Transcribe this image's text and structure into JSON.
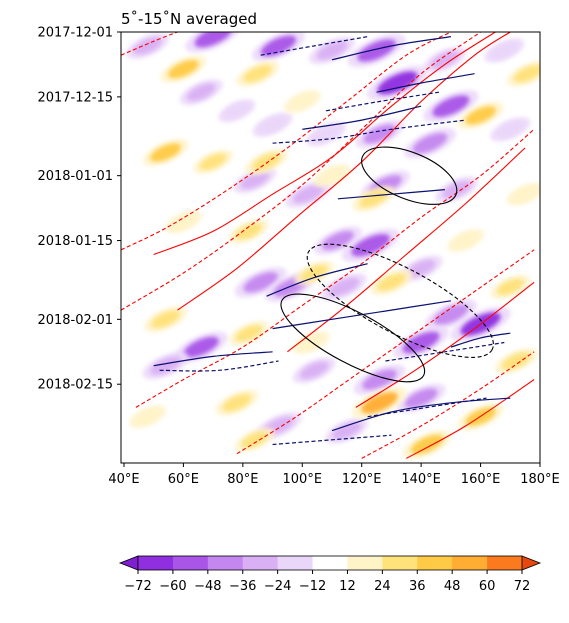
{
  "chart_data": {
    "type": "heatmap",
    "title": "5˚-15˚N averaged",
    "xlabel": "",
    "ylabel": "",
    "xlim": [
      39,
      180
    ],
    "ylim_dates": [
      "2017-12-01",
      "2018-03-04"
    ],
    "x_ticks": [
      {
        "value": 40,
        "label": "40°E"
      },
      {
        "value": 60,
        "label": "60°E"
      },
      {
        "value": 80,
        "label": "80°E"
      },
      {
        "value": 100,
        "label": "100°E"
      },
      {
        "value": 120,
        "label": "120°E"
      },
      {
        "value": 140,
        "label": "140°E"
      },
      {
        "value": 160,
        "label": "160°E"
      },
      {
        "value": 180,
        "label": "180°E"
      }
    ],
    "y_ticks": [
      {
        "date": "2017-12-01",
        "label": "2017-12-01"
      },
      {
        "date": "2017-12-15",
        "label": "2017-12-15"
      },
      {
        "date": "2018-01-01",
        "label": "2018-01-01"
      },
      {
        "date": "2018-01-15",
        "label": "2018-01-15"
      },
      {
        "date": "2018-02-01",
        "label": "2018-02-01"
      },
      {
        "date": "2018-02-15",
        "label": "2018-02-15"
      }
    ],
    "colorbar": {
      "levels": [
        -72,
        -60,
        -48,
        -36,
        -24,
        -12,
        12,
        24,
        36,
        48,
        60,
        72
      ],
      "tick_labels": [
        "−72",
        "−60",
        "−48",
        "−36",
        "−24",
        "−12",
        "12",
        "24",
        "36",
        "48",
        "60",
        "72"
      ],
      "under_color": "#7e1fd1",
      "over_color": "#e8480e",
      "bin_colors": [
        "#8f2fe0",
        "#a855e8",
        "#c487ef",
        "#d9b0f4",
        "#ead6f9",
        "#ffffff",
        "#fff3c8",
        "#ffe27a",
        "#ffca45",
        "#ffad33",
        "#fb7a1d"
      ]
    },
    "shading_patches": [
      {
        "lon": 48,
        "date": "2017-12-04",
        "value": -30
      },
      {
        "lon": 70,
        "date": "2017-12-02",
        "value": -55
      },
      {
        "lon": 92,
        "date": "2017-12-04",
        "value": -50
      },
      {
        "lon": 110,
        "date": "2017-12-05",
        "value": -36
      },
      {
        "lon": 125,
        "date": "2017-12-05",
        "value": -60
      },
      {
        "lon": 148,
        "date": "2017-12-07",
        "value": -30
      },
      {
        "lon": 168,
        "date": "2017-12-05",
        "value": -24
      },
      {
        "lon": 132,
        "date": "2017-12-12",
        "value": -65
      },
      {
        "lon": 150,
        "date": "2017-12-17",
        "value": -55
      },
      {
        "lon": 66,
        "date": "2017-12-14",
        "value": -30
      },
      {
        "lon": 78,
        "date": "2017-12-18",
        "value": -18
      },
      {
        "lon": 90,
        "date": "2017-12-21",
        "value": -24
      },
      {
        "lon": 108,
        "date": "2017-12-23",
        "value": -24
      },
      {
        "lon": 126,
        "date": "2017-12-23",
        "value": -40
      },
      {
        "lon": 143,
        "date": "2017-12-25",
        "value": -48
      },
      {
        "lon": 170,
        "date": "2017-12-22",
        "value": -24
      },
      {
        "lon": 84,
        "date": "2018-01-02",
        "value": -30
      },
      {
        "lon": 102,
        "date": "2018-01-05",
        "value": -36
      },
      {
        "lon": 128,
        "date": "2018-01-03",
        "value": -42
      },
      {
        "lon": 152,
        "date": "2018-01-04",
        "value": -30
      },
      {
        "lon": 112,
        "date": "2018-01-15",
        "value": -40
      },
      {
        "lon": 123,
        "date": "2018-01-16",
        "value": -60
      },
      {
        "lon": 140,
        "date": "2018-01-21",
        "value": -30
      },
      {
        "lon": 86,
        "date": "2018-01-24",
        "value": -48
      },
      {
        "lon": 96,
        "date": "2018-01-25",
        "value": -45
      },
      {
        "lon": 114,
        "date": "2018-01-25",
        "value": -36
      },
      {
        "lon": 150,
        "date": "2018-01-31",
        "value": -48
      },
      {
        "lon": 160,
        "date": "2018-02-02",
        "value": -65
      },
      {
        "lon": 140,
        "date": "2018-02-06",
        "value": -55
      },
      {
        "lon": 66,
        "date": "2018-02-07",
        "value": -50
      },
      {
        "lon": 54,
        "date": "2018-02-11",
        "value": -36
      },
      {
        "lon": 104,
        "date": "2018-02-12",
        "value": -30
      },
      {
        "lon": 126,
        "date": "2018-02-14",
        "value": -48
      },
      {
        "lon": 140,
        "date": "2018-02-18",
        "value": -42
      },
      {
        "lon": 92,
        "date": "2018-02-24",
        "value": -36
      },
      {
        "lon": 115,
        "date": "2018-02-25",
        "value": -30
      },
      {
        "lon": 60,
        "date": "2017-12-09",
        "value": 36
      },
      {
        "lon": 85,
        "date": "2017-12-10",
        "value": 30
      },
      {
        "lon": 176,
        "date": "2017-12-10",
        "value": 30
      },
      {
        "lon": 100,
        "date": "2017-12-16",
        "value": 18
      },
      {
        "lon": 160,
        "date": "2017-12-19",
        "value": 36
      },
      {
        "lon": 54,
        "date": "2017-12-27",
        "value": 36
      },
      {
        "lon": 70,
        "date": "2017-12-29",
        "value": 24
      },
      {
        "lon": 88,
        "date": "2017-12-29",
        "value": 30
      },
      {
        "lon": 110,
        "date": "2018-01-01",
        "value": 18
      },
      {
        "lon": 124,
        "date": "2018-01-06",
        "value": 30
      },
      {
        "lon": 175,
        "date": "2018-01-05",
        "value": 18
      },
      {
        "lon": 60,
        "date": "2018-01-11",
        "value": 18
      },
      {
        "lon": 82,
        "date": "2018-01-13",
        "value": 24
      },
      {
        "lon": 155,
        "date": "2018-01-15",
        "value": 18
      },
      {
        "lon": 104,
        "date": "2018-01-22",
        "value": 24
      },
      {
        "lon": 130,
        "date": "2018-01-24",
        "value": 30
      },
      {
        "lon": 170,
        "date": "2018-01-25",
        "value": 24
      },
      {
        "lon": 54,
        "date": "2018-02-01",
        "value": 30
      },
      {
        "lon": 82,
        "date": "2018-02-04",
        "value": 24
      },
      {
        "lon": 103,
        "date": "2018-02-06",
        "value": 18
      },
      {
        "lon": 172,
        "date": "2018-02-10",
        "value": 30
      },
      {
        "lon": 48,
        "date": "2018-02-22",
        "value": 18
      },
      {
        "lon": 78,
        "date": "2018-02-19",
        "value": 30
      },
      {
        "lon": 126,
        "date": "2018-02-19",
        "value": 54
      },
      {
        "lon": 160,
        "date": "2018-02-22",
        "value": 36
      },
      {
        "lon": 84,
        "date": "2018-02-27",
        "value": 24
      },
      {
        "lon": 142,
        "date": "2018-02-28",
        "value": 42
      }
    ],
    "contour_series": [
      {
        "style": "red-solid",
        "color": "#ff0000",
        "dash": false,
        "points": [
          [
            50,
            "2018-01-18"
          ],
          [
            70,
            "2018-01-13"
          ],
          [
            90,
            "2018-01-05"
          ],
          [
            110,
            "2017-12-28"
          ],
          [
            130,
            "2017-12-17"
          ],
          [
            148,
            "2017-12-08"
          ],
          [
            165,
            "2017-12-01"
          ]
        ]
      },
      {
        "style": "red-solid",
        "color": "#ff0000",
        "dash": false,
        "points": [
          [
            58,
            "2018-01-30"
          ],
          [
            78,
            "2018-01-21"
          ],
          [
            98,
            "2018-01-10"
          ],
          [
            120,
            "2017-12-29"
          ],
          [
            140,
            "2017-12-16"
          ],
          [
            158,
            "2017-12-06"
          ],
          [
            170,
            "2017-12-01"
          ]
        ]
      },
      {
        "style": "red-solid",
        "color": "#ff0000",
        "dash": false,
        "points": [
          [
            95,
            "2018-02-08"
          ],
          [
            115,
            "2018-01-29"
          ],
          [
            135,
            "2018-01-18"
          ],
          [
            155,
            "2018-01-07"
          ],
          [
            175,
            "2017-12-26"
          ]
        ]
      },
      {
        "style": "red-solid",
        "color": "#ff0000",
        "dash": false,
        "points": [
          [
            118,
            "2018-02-20"
          ],
          [
            138,
            "2018-02-12"
          ],
          [
            158,
            "2018-02-03"
          ],
          [
            178,
            "2018-01-24"
          ]
        ]
      },
      {
        "style": "red-solid",
        "color": "#ff0000",
        "dash": false,
        "points": [
          [
            135,
            "2018-03-03"
          ],
          [
            155,
            "2018-02-24"
          ],
          [
            178,
            "2018-02-14"
          ]
        ]
      },
      {
        "style": "red-dashed",
        "color": "#ff0000",
        "dash": true,
        "points": [
          [
            39,
            "2017-12-06"
          ],
          [
            50,
            "2017-12-03"
          ],
          [
            58,
            "2017-12-01"
          ]
        ]
      },
      {
        "style": "red-dashed",
        "color": "#ff0000",
        "dash": true,
        "points": [
          [
            39,
            "2018-01-17"
          ],
          [
            55,
            "2018-01-12"
          ],
          [
            75,
            "2018-01-04"
          ],
          [
            95,
            "2017-12-26"
          ],
          [
            115,
            "2017-12-16"
          ],
          [
            135,
            "2017-12-06"
          ],
          [
            150,
            "2017-12-01"
          ]
        ]
      },
      {
        "style": "red-dashed",
        "color": "#ff0000",
        "dash": true,
        "points": [
          [
            39,
            "2018-01-30"
          ],
          [
            60,
            "2018-01-22"
          ],
          [
            80,
            "2018-01-13"
          ],
          [
            100,
            "2018-01-03"
          ],
          [
            120,
            "2017-12-22"
          ],
          [
            140,
            "2017-12-10"
          ],
          [
            160,
            "2017-12-01"
          ]
        ]
      },
      {
        "style": "red-dashed",
        "color": "#ff0000",
        "dash": true,
        "points": [
          [
            44,
            "2018-02-20"
          ],
          [
            60,
            "2018-02-14"
          ],
          [
            80,
            "2018-02-07"
          ],
          [
            100,
            "2018-01-29"
          ],
          [
            120,
            "2018-01-20"
          ],
          [
            140,
            "2018-01-10"
          ],
          [
            160,
            "2018-01-01"
          ],
          [
            178,
            "2017-12-22"
          ]
        ]
      },
      {
        "style": "red-dashed",
        "color": "#ff0000",
        "dash": true,
        "points": [
          [
            78,
            "2018-03-02"
          ],
          [
            98,
            "2018-02-22"
          ],
          [
            118,
            "2018-02-13"
          ],
          [
            138,
            "2018-02-04"
          ],
          [
            158,
            "2018-01-26"
          ],
          [
            178,
            "2018-01-17"
          ]
        ]
      },
      {
        "style": "red-dashed",
        "color": "#ff0000",
        "dash": true,
        "points": [
          [
            120,
            "2018-03-03"
          ],
          [
            140,
            "2018-02-24"
          ],
          [
            160,
            "2018-02-16"
          ],
          [
            178,
            "2018-02-08"
          ]
        ]
      },
      {
        "style": "navy-solid",
        "color": "#0b1170",
        "dash": false,
        "points": [
          [
            110,
            "2017-12-07"
          ],
          [
            130,
            "2017-12-04"
          ],
          [
            150,
            "2017-12-02"
          ]
        ]
      },
      {
        "style": "navy-solid",
        "color": "#0b1170",
        "dash": false,
        "points": [
          [
            125,
            "2017-12-14"
          ],
          [
            140,
            "2017-12-12"
          ],
          [
            158,
            "2017-12-10"
          ]
        ]
      },
      {
        "style": "navy-solid",
        "color": "#0b1170",
        "dash": false,
        "points": [
          [
            100,
            "2017-12-22"
          ],
          [
            120,
            "2017-12-20"
          ],
          [
            140,
            "2017-12-17"
          ]
        ]
      },
      {
        "style": "navy-solid",
        "color": "#0b1170",
        "dash": false,
        "points": [
          [
            112,
            "2018-01-06"
          ],
          [
            130,
            "2018-01-05"
          ],
          [
            148,
            "2018-01-04"
          ]
        ]
      },
      {
        "style": "navy-solid",
        "color": "#0b1170",
        "dash": false,
        "points": [
          [
            88,
            "2018-01-27"
          ],
          [
            104,
            "2018-01-23"
          ],
          [
            122,
            "2018-01-20"
          ]
        ]
      },
      {
        "style": "navy-solid",
        "color": "#0b1170",
        "dash": false,
        "points": [
          [
            90,
            "2018-02-03"
          ],
          [
            110,
            "2018-02-01"
          ],
          [
            130,
            "2018-01-30"
          ],
          [
            150,
            "2018-01-28"
          ]
        ]
      },
      {
        "style": "navy-solid",
        "color": "#0b1170",
        "dash": false,
        "points": [
          [
            50,
            "2018-02-11"
          ],
          [
            70,
            "2018-02-09"
          ],
          [
            90,
            "2018-02-08"
          ]
        ]
      },
      {
        "style": "navy-solid",
        "color": "#0b1170",
        "dash": false,
        "points": [
          [
            110,
            "2018-02-25"
          ],
          [
            130,
            "2018-02-21"
          ],
          [
            150,
            "2018-02-19"
          ],
          [
            170,
            "2018-02-18"
          ]
        ]
      },
      {
        "style": "navy-solid",
        "color": "#0b1170",
        "dash": false,
        "points": [
          [
            150,
            "2018-02-07"
          ],
          [
            160,
            "2018-02-05"
          ],
          [
            170,
            "2018-02-04"
          ]
        ]
      },
      {
        "style": "navy-dashed",
        "color": "#0b1170",
        "dash": true,
        "points": [
          [
            86,
            "2017-12-06"
          ],
          [
            104,
            "2017-12-04"
          ],
          [
            122,
            "2017-12-02"
          ]
        ]
      },
      {
        "style": "navy-dashed",
        "color": "#0b1170",
        "dash": true,
        "points": [
          [
            108,
            "2017-12-18"
          ],
          [
            126,
            "2017-12-16"
          ],
          [
            146,
            "2017-12-14"
          ]
        ]
      },
      {
        "style": "navy-dashed",
        "color": "#0b1170",
        "dash": true,
        "points": [
          [
            90,
            "2017-12-25"
          ],
          [
            110,
            "2017-12-24"
          ],
          [
            130,
            "2017-12-22"
          ],
          [
            155,
            "2017-12-20"
          ]
        ]
      },
      {
        "style": "navy-dashed",
        "color": "#0b1170",
        "dash": true,
        "points": [
          [
            52,
            "2018-02-12"
          ],
          [
            72,
            "2018-02-12"
          ],
          [
            92,
            "2018-02-10"
          ]
        ]
      },
      {
        "style": "navy-dashed",
        "color": "#0b1170",
        "dash": true,
        "points": [
          [
            122,
            "2018-02-22"
          ],
          [
            142,
            "2018-02-20"
          ],
          [
            162,
            "2018-02-18"
          ]
        ]
      },
      {
        "style": "navy-dashed",
        "color": "#0b1170",
        "dash": true,
        "points": [
          [
            128,
            "2018-02-10"
          ],
          [
            148,
            "2018-02-08"
          ],
          [
            168,
            "2018-02-06"
          ]
        ]
      },
      {
        "style": "navy-dashed",
        "color": "#0b1170",
        "dash": true,
        "points": [
          [
            90,
            "2018-02-28"
          ],
          [
            110,
            "2018-02-27"
          ],
          [
            130,
            "2018-02-26"
          ]
        ]
      }
    ],
    "black_ellipses": [
      {
        "center_lon": 136,
        "center_date": "2018-01-01",
        "semi_lon": 17,
        "semi_days": 5,
        "tilt_deg": 22,
        "dash": false
      },
      {
        "center_lon": 133,
        "center_date": "2018-01-28",
        "semi_lon": 35,
        "semi_days": 7,
        "tilt_deg": 28,
        "dash": true
      },
      {
        "center_lon": 117,
        "center_date": "2018-02-05",
        "semi_lon": 27,
        "semi_days": 5.5,
        "tilt_deg": 28,
        "dash": false
      }
    ]
  }
}
